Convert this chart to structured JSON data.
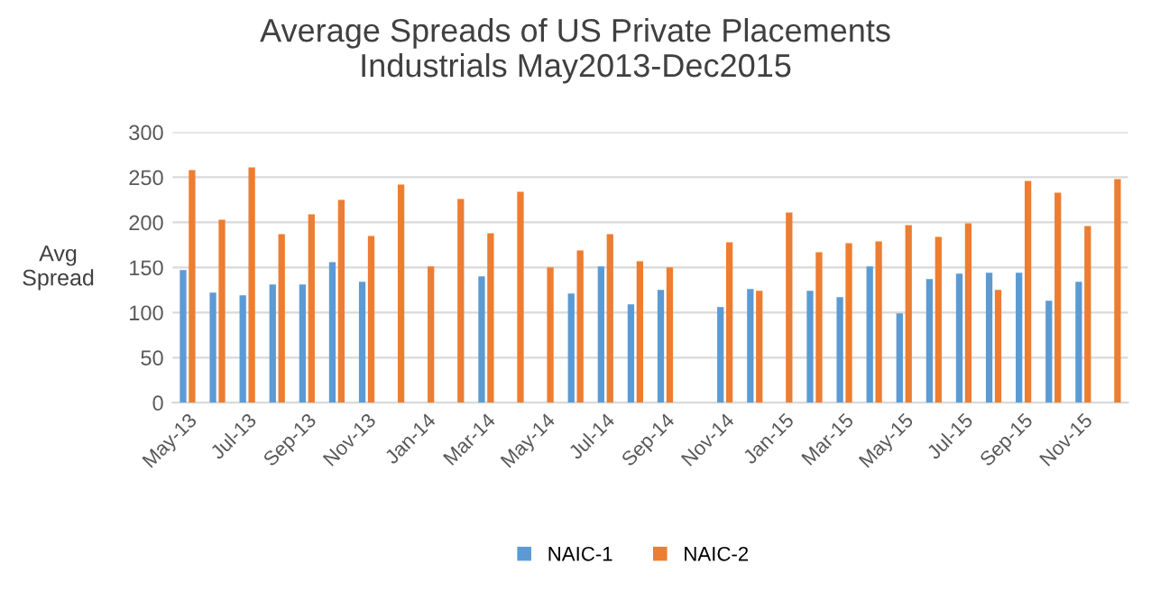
{
  "chart_data": {
    "type": "bar",
    "title": "Average Spreads of US Private Placements\nIndustrials May2013-Dec2015",
    "ylabel": "Avg\nSpread",
    "categories": [
      "May-13",
      null,
      "Jul-13",
      null,
      "Sep-13",
      null,
      "Nov-13",
      null,
      "Jan-14",
      null,
      "Mar-14",
      null,
      "May-14",
      null,
      "Jul-14",
      null,
      "Sep-14",
      null,
      "Nov-14",
      null,
      "Jan-15",
      null,
      "Mar-15",
      null,
      "May-15",
      null,
      "Jul-15",
      null,
      "Sep-15",
      null,
      "Nov-15",
      null
    ],
    "series": [
      {
        "name": "NAIC-1",
        "color": "#5b9bd5",
        "values": [
          147,
          122,
          119,
          131,
          131,
          156,
          134,
          null,
          null,
          null,
          140,
          null,
          null,
          121,
          151,
          109,
          125,
          null,
          106,
          126,
          null,
          124,
          117,
          151,
          99,
          137,
          143,
          144,
          144,
          113,
          134,
          null
        ]
      },
      {
        "name": "NAIC-2",
        "color": "#ed7d31",
        "values": [
          258,
          203,
          261,
          187,
          209,
          225,
          185,
          242,
          151,
          226,
          188,
          234,
          150,
          169,
          187,
          157,
          150,
          null,
          178,
          124,
          211,
          167,
          177,
          179,
          197,
          184,
          199,
          125,
          246,
          233,
          196,
          248
        ]
      }
    ],
    "ylim": [
      0,
      300
    ],
    "yticks": [
      0,
      50,
      100,
      150,
      200,
      250,
      300
    ],
    "grid": "y",
    "legend": "bottom"
  }
}
